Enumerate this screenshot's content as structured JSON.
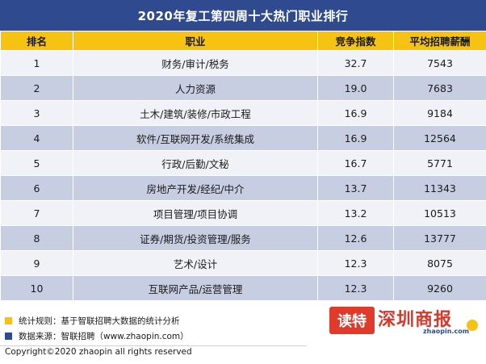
{
  "title": "2020年复工第四周十大热门职业排行",
  "headers": [
    "排名",
    "职业",
    "竞争指数",
    "平均招聘薪酬"
  ],
  "rows": [
    {
      "rank": "1",
      "job": "财务/审计/税务",
      "index": "32.7",
      "salary": "7543"
    },
    {
      "rank": "2",
      "job": "人力资源",
      "index": "19.0",
      "salary": "7683"
    },
    {
      "rank": "3",
      "job": "土木/建筑/装修/市政工程",
      "index": "16.9",
      "salary": "9184"
    },
    {
      "rank": "4",
      "job": "软件/互联网开发/系统集成",
      "index": "16.9",
      "salary": "12564"
    },
    {
      "rank": "5",
      "job": "行政/后勤/文秘",
      "index": "16.7",
      "salary": "5771"
    },
    {
      "rank": "6",
      "job": "房地产开发/经纪/中介",
      "index": "13.7",
      "salary": "11343"
    },
    {
      "rank": "7",
      "job": "项目管理/项目协调",
      "index": "13.2",
      "salary": "10513"
    },
    {
      "rank": "8",
      "job": "证券/期货/投资管理/服务",
      "index": "12.6",
      "salary": "13777"
    },
    {
      "rank": "9",
      "job": "艺术/设计",
      "index": "12.3",
      "salary": "8075"
    },
    {
      "rank": "10",
      "job": "互联网产品/运营管理",
      "index": "12.3",
      "salary": "9260"
    }
  ],
  "notes": [
    {
      "text": "统计规则：基于智联招聘大数据的统计分析",
      "color": "#f6c314"
    },
    {
      "text": "数据来源：智联招聘（www.zhaopin.com）",
      "color": "#2f4a8f"
    }
  ],
  "copyright": "Copyright©2020 zhaopin all rights reserved",
  "watermark": {
    "badge": "读特",
    "name": "深圳商报",
    "sub": "zhaopin.com"
  },
  "colors": {
    "title_bg": "#2f4a8f",
    "header_bg": "#f6c314",
    "row_light": "#f1f2f7",
    "row_dark": "#c8cee2"
  }
}
